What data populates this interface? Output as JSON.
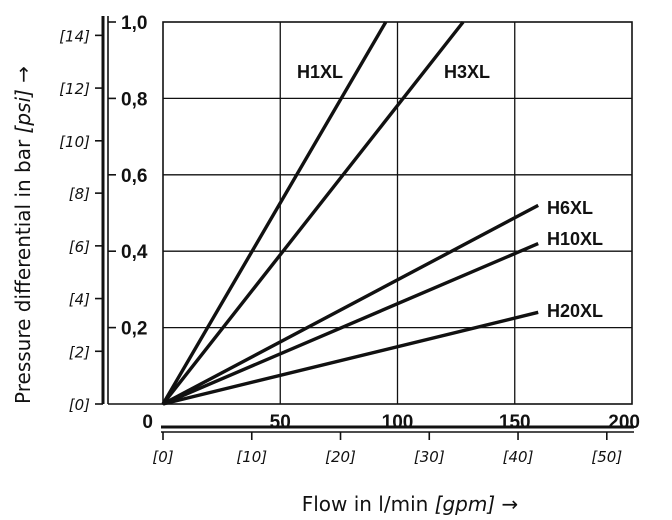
{
  "chart_data": {
    "type": "line",
    "xlabel": "Flow in l/min [gpm] →",
    "xlabel_plain": "Flow in l/min ",
    "xlabel_unit": "[gpm]",
    "xlabel_arrow": " →",
    "ylabel": "Pressure differential in bar [psi] →",
    "ylabel_plain": "Pressure differential in bar ",
    "ylabel_unit": "[psi]",
    "ylabel_arrow": " →",
    "xlim": [
      0,
      200
    ],
    "ylim": [
      0,
      1.0
    ],
    "x_ticks": [
      "0",
      "50",
      "100",
      "150",
      "200"
    ],
    "y_ticks": [
      "0,2",
      "0,4",
      "0,6",
      "0,8",
      "1,0"
    ],
    "secondary_x_ticks": [
      {
        "label": "[0]",
        "value": 0
      },
      {
        "label": "[10]",
        "value": 37.85
      },
      {
        "label": "[20]",
        "value": 75.7
      },
      {
        "label": "[30]",
        "value": 113.55
      },
      {
        "label": "[40]",
        "value": 151.4
      },
      {
        "label": "[50]",
        "value": 189.25
      }
    ],
    "secondary_y_ticks": [
      {
        "label": "[0]",
        "value": 0
      },
      {
        "label": "[2]",
        "value": 0.138
      },
      {
        "label": "[4]",
        "value": 0.276
      },
      {
        "label": "[6]",
        "value": 0.414
      },
      {
        "label": "[8]",
        "value": 0.552
      },
      {
        "label": "[10]",
        "value": 0.689
      },
      {
        "label": "[12]",
        "value": 0.827
      },
      {
        "label": "[14]",
        "value": 0.965
      }
    ],
    "grid": true,
    "series": [
      {
        "name": "H1XL",
        "x": [
          0,
          95
        ],
        "y": [
          0,
          1.0
        ]
      },
      {
        "name": "H3XL",
        "x": [
          0,
          128
        ],
        "y": [
          0,
          1.0
        ]
      },
      {
        "name": "H6XL",
        "x": [
          0,
          160
        ],
        "y": [
          0,
          0.52
        ]
      },
      {
        "name": "H10XL",
        "x": [
          0,
          160
        ],
        "y": [
          0,
          0.42
        ]
      },
      {
        "name": "H20XL",
        "x": [
          0,
          160
        ],
        "y": [
          0,
          0.24
        ]
      }
    ],
    "line_color": "#111111"
  }
}
